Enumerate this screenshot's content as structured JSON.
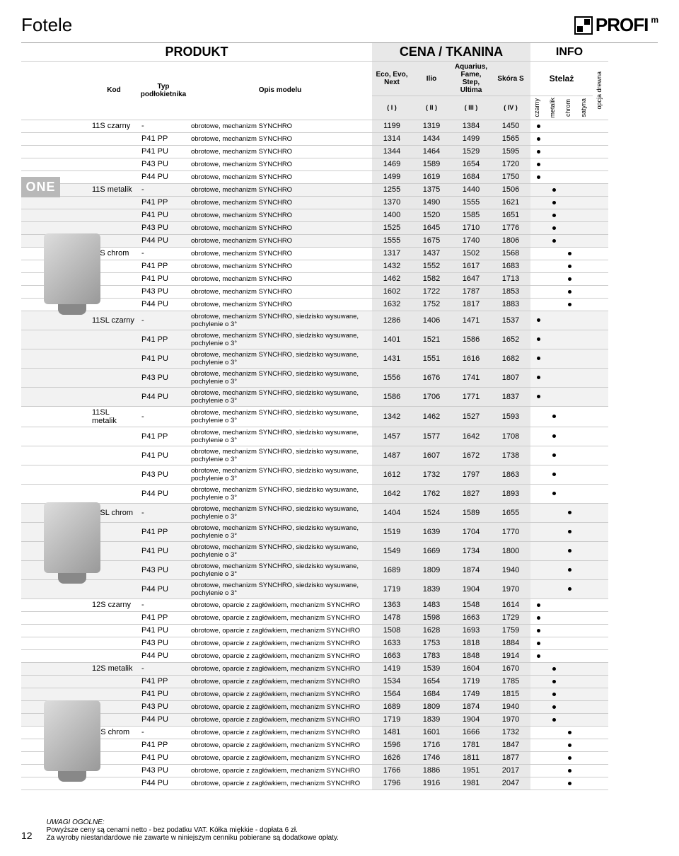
{
  "page": {
    "title": "Fotele",
    "logo": "PROFI",
    "logo_sup": "m",
    "sidebar_label": "ONE",
    "page_number": "12"
  },
  "headers": {
    "produkt": "PRODUKT",
    "cena": "CENA / TKANINA",
    "info": "INFO",
    "kod": "Kod",
    "typ": "Typ podłokietnika",
    "opis": "Opis modelu",
    "stelaz": "Stelaż",
    "c1t": "Eco, Evo, Next",
    "c2t": "Ilio",
    "c3t": "Aquarius, Fame, Step, Ultima",
    "c4t": "Skóra S",
    "c1": "( I )",
    "c2": "( II )",
    "c3": "( III )",
    "c4": "( IV )",
    "i1": "czarny",
    "i2": "metalik",
    "i3": "chrom",
    "i4": "satyna",
    "i5": "opcja drewna"
  },
  "rows": [
    {
      "kod": "11S czarny",
      "typ": "-",
      "desc": "obrotowe, mechanizm SYNCHRO",
      "p": [
        1199,
        1319,
        1384,
        1450
      ],
      "i": 0
    },
    {
      "kod": "",
      "typ": "P41 PP",
      "desc": "obrotowe, mechanizm SYNCHRO",
      "p": [
        1314,
        1434,
        1499,
        1565
      ],
      "i": 0
    },
    {
      "kod": "",
      "typ": "P41 PU",
      "desc": "obrotowe, mechanizm SYNCHRO",
      "p": [
        1344,
        1464,
        1529,
        1595
      ],
      "i": 0
    },
    {
      "kod": "",
      "typ": "P43 PU",
      "desc": "obrotowe, mechanizm SYNCHRO",
      "p": [
        1469,
        1589,
        1654,
        1720
      ],
      "i": 0
    },
    {
      "kod": "",
      "typ": "P44 PU",
      "desc": "obrotowe, mechanizm SYNCHRO",
      "p": [
        1499,
        1619,
        1684,
        1750
      ],
      "i": 0
    },
    {
      "kod": "11S metalik",
      "typ": "-",
      "desc": "obrotowe, mechanizm SYNCHRO",
      "p": [
        1255,
        1375,
        1440,
        1506
      ],
      "i": 1,
      "z": 1
    },
    {
      "kod": "",
      "typ": "P41 PP",
      "desc": "obrotowe, mechanizm SYNCHRO",
      "p": [
        1370,
        1490,
        1555,
        1621
      ],
      "i": 1,
      "z": 1
    },
    {
      "kod": "",
      "typ": "P41 PU",
      "desc": "obrotowe, mechanizm SYNCHRO",
      "p": [
        1400,
        1520,
        1585,
        1651
      ],
      "i": 1,
      "z": 1
    },
    {
      "kod": "",
      "typ": "P43 PU",
      "desc": "obrotowe, mechanizm SYNCHRO",
      "p": [
        1525,
        1645,
        1710,
        1776
      ],
      "i": 1,
      "z": 1
    },
    {
      "kod": "",
      "typ": "P44 PU",
      "desc": "obrotowe, mechanizm SYNCHRO",
      "p": [
        1555,
        1675,
        1740,
        1806
      ],
      "i": 1,
      "z": 1
    },
    {
      "kod": "11S chrom",
      "typ": "-",
      "desc": "obrotowe, mechanizm SYNCHRO",
      "p": [
        1317,
        1437,
        1502,
        1568
      ],
      "i": 2
    },
    {
      "kod": "",
      "typ": "P41 PP",
      "desc": "obrotowe, mechanizm SYNCHRO",
      "p": [
        1432,
        1552,
        1617,
        1683
      ],
      "i": 2
    },
    {
      "kod": "",
      "typ": "P41 PU",
      "desc": "obrotowe, mechanizm SYNCHRO",
      "p": [
        1462,
        1582,
        1647,
        1713
      ],
      "i": 2
    },
    {
      "kod": "",
      "typ": "P43 PU",
      "desc": "obrotowe, mechanizm SYNCHRO",
      "p": [
        1602,
        1722,
        1787,
        1853
      ],
      "i": 2
    },
    {
      "kod": "",
      "typ": "P44 PU",
      "desc": "obrotowe, mechanizm SYNCHRO",
      "p": [
        1632,
        1752,
        1817,
        1883
      ],
      "i": 2
    },
    {
      "kod": "11SL czarny",
      "typ": "-",
      "desc": "obrotowe, mechanizm SYNCHRO, siedzisko wysuwane, pochylenie o 3°",
      "p": [
        1286,
        1406,
        1471,
        1537
      ],
      "i": 0,
      "z": 1
    },
    {
      "kod": "",
      "typ": "P41 PP",
      "desc": "obrotowe, mechanizm SYNCHRO, siedzisko wysuwane, pochylenie o 3°",
      "p": [
        1401,
        1521,
        1586,
        1652
      ],
      "i": 0,
      "z": 1
    },
    {
      "kod": "",
      "typ": "P41 PU",
      "desc": "obrotowe, mechanizm SYNCHRO, siedzisko wysuwane, pochylenie o 3°",
      "p": [
        1431,
        1551,
        1616,
        1682
      ],
      "i": 0,
      "z": 1
    },
    {
      "kod": "",
      "typ": "P43 PU",
      "desc": "obrotowe, mechanizm SYNCHRO, siedzisko wysuwane, pochylenie o 3°",
      "p": [
        1556,
        1676,
        1741,
        1807
      ],
      "i": 0,
      "z": 1
    },
    {
      "kod": "",
      "typ": "P44 PU",
      "desc": "obrotowe, mechanizm SYNCHRO, siedzisko wysuwane, pochylenie o 3°",
      "p": [
        1586,
        1706,
        1771,
        1837
      ],
      "i": 0,
      "z": 1
    },
    {
      "kod": "11SL metalik",
      "typ": "-",
      "desc": "obrotowe, mechanizm SYNCHRO, siedzisko wysuwane, pochylenie o 3°",
      "p": [
        1342,
        1462,
        1527,
        1593
      ],
      "i": 1
    },
    {
      "kod": "",
      "typ": "P41 PP",
      "desc": "obrotowe, mechanizm SYNCHRO, siedzisko wysuwane, pochylenie o 3°",
      "p": [
        1457,
        1577,
        1642,
        1708
      ],
      "i": 1
    },
    {
      "kod": "",
      "typ": "P41 PU",
      "desc": "obrotowe, mechanizm SYNCHRO, siedzisko wysuwane, pochylenie o 3°",
      "p": [
        1487,
        1607,
        1672,
        1738
      ],
      "i": 1
    },
    {
      "kod": "",
      "typ": "P43 PU",
      "desc": "obrotowe, mechanizm SYNCHRO, siedzisko wysuwane, pochylenie o 3°",
      "p": [
        1612,
        1732,
        1797,
        1863
      ],
      "i": 1
    },
    {
      "kod": "",
      "typ": "P44 PU",
      "desc": "obrotowe, mechanizm SYNCHRO, siedzisko wysuwane, pochylenie o 3°",
      "p": [
        1642,
        1762,
        1827,
        1893
      ],
      "i": 1
    },
    {
      "kod": "11SL chrom",
      "typ": "-",
      "desc": "obrotowe, mechanizm SYNCHRO, siedzisko wysuwane, pochylenie o 3°",
      "p": [
        1404,
        1524,
        1589,
        1655
      ],
      "i": 2,
      "z": 1
    },
    {
      "kod": "",
      "typ": "P41 PP",
      "desc": "obrotowe, mechanizm SYNCHRO, siedzisko wysuwane, pochylenie o 3°",
      "p": [
        1519,
        1639,
        1704,
        1770
      ],
      "i": 2,
      "z": 1
    },
    {
      "kod": "",
      "typ": "P41 PU",
      "desc": "obrotowe, mechanizm SYNCHRO, siedzisko wysuwane, pochylenie o 3°",
      "p": [
        1549,
        1669,
        1734,
        1800
      ],
      "i": 2,
      "z": 1
    },
    {
      "kod": "",
      "typ": "P43 PU",
      "desc": "obrotowe, mechanizm SYNCHRO, siedzisko wysuwane, pochylenie o 3°",
      "p": [
        1689,
        1809,
        1874,
        1940
      ],
      "i": 2,
      "z": 1
    },
    {
      "kod": "",
      "typ": "P44 PU",
      "desc": "obrotowe, mechanizm SYNCHRO, siedzisko wysuwane, pochylenie o 3°",
      "p": [
        1719,
        1839,
        1904,
        1970
      ],
      "i": 2,
      "z": 1
    },
    {
      "kod": "12S czarny",
      "typ": "-",
      "desc": "obrotowe, oparcie z zagłówkiem, mechanizm SYNCHRO",
      "p": [
        1363,
        1483,
        1548,
        1614
      ],
      "i": 0
    },
    {
      "kod": "",
      "typ": "P41 PP",
      "desc": "obrotowe, oparcie z zagłówkiem, mechanizm SYNCHRO",
      "p": [
        1478,
        1598,
        1663,
        1729
      ],
      "i": 0
    },
    {
      "kod": "",
      "typ": "P41 PU",
      "desc": "obrotowe, oparcie z zagłówkiem, mechanizm SYNCHRO",
      "p": [
        1508,
        1628,
        1693,
        1759
      ],
      "i": 0
    },
    {
      "kod": "",
      "typ": "P43 PU",
      "desc": "obrotowe, oparcie z zagłówkiem, mechanizm SYNCHRO",
      "p": [
        1633,
        1753,
        1818,
        1884
      ],
      "i": 0
    },
    {
      "kod": "",
      "typ": "P44 PU",
      "desc": "obrotowe, oparcie z zagłówkiem, mechanizm SYNCHRO",
      "p": [
        1663,
        1783,
        1848,
        1914
      ],
      "i": 0
    },
    {
      "kod": "12S metalik",
      "typ": "-",
      "desc": "obrotowe, oparcie z zagłówkiem, mechanizm SYNCHRO",
      "p": [
        1419,
        1539,
        1604,
        1670
      ],
      "i": 1,
      "z": 1
    },
    {
      "kod": "",
      "typ": "P41 PP",
      "desc": "obrotowe, oparcie z zagłówkiem, mechanizm SYNCHRO",
      "p": [
        1534,
        1654,
        1719,
        1785
      ],
      "i": 1,
      "z": 1
    },
    {
      "kod": "",
      "typ": "P41 PU",
      "desc": "obrotowe, oparcie z zagłówkiem, mechanizm SYNCHRO",
      "p": [
        1564,
        1684,
        1749,
        1815
      ],
      "i": 1,
      "z": 1
    },
    {
      "kod": "",
      "typ": "P43 PU",
      "desc": "obrotowe, oparcie z zagłówkiem, mechanizm SYNCHRO",
      "p": [
        1689,
        1809,
        1874,
        1940
      ],
      "i": 1,
      "z": 1
    },
    {
      "kod": "",
      "typ": "P44 PU",
      "desc": "obrotowe, oparcie z zagłówkiem, mechanizm SYNCHRO",
      "p": [
        1719,
        1839,
        1904,
        1970
      ],
      "i": 1,
      "z": 1
    },
    {
      "kod": "12S chrom",
      "typ": "-",
      "desc": "obrotowe, oparcie z zagłówkiem, mechanizm SYNCHRO",
      "p": [
        1481,
        1601,
        1666,
        1732
      ],
      "i": 2
    },
    {
      "kod": "",
      "typ": "P41 PP",
      "desc": "obrotowe, oparcie z zagłówkiem, mechanizm SYNCHRO",
      "p": [
        1596,
        1716,
        1781,
        1847
      ],
      "i": 2
    },
    {
      "kod": "",
      "typ": "P41 PU",
      "desc": "obrotowe, oparcie z zagłówkiem, mechanizm SYNCHRO",
      "p": [
        1626,
        1746,
        1811,
        1877
      ],
      "i": 2
    },
    {
      "kod": "",
      "typ": "P43 PU",
      "desc": "obrotowe, oparcie z zagłówkiem, mechanizm SYNCHRO",
      "p": [
        1766,
        1886,
        1951,
        2017
      ],
      "i": 2
    },
    {
      "kod": "",
      "typ": "P44 PU",
      "desc": "obrotowe, oparcie z zagłówkiem, mechanizm SYNCHRO",
      "p": [
        1796,
        1916,
        1981,
        2047
      ],
      "i": 2
    }
  ],
  "footer": {
    "heading": "UWAGI OGÓLNE:",
    "line1": "Powyższe ceny są cenami netto - bez podatku VAT.  Kółka miękkie - dopłata 6 zł.",
    "line2": "Za wyroby niestandardowe nie zawarte w niniejszym cenniku pobierane są dodatkowe opłaty."
  }
}
